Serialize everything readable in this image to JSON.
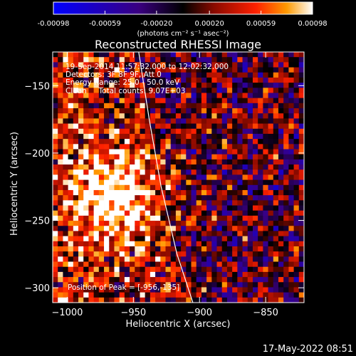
{
  "chart_data": {
    "type": "heatmap",
    "title": "Reconstructed RHESSI Image",
    "xlabel": "Heliocentric X (arcsec)",
    "ylabel": "Heliocentric Y (arcsec)",
    "xlim": [
      -1011,
      -821
    ],
    "ylim": [
      -311,
      -125
    ],
    "x_ticks": [
      -1000,
      -950,
      -900,
      -850
    ],
    "x_tick_labels": [
      "−1000",
      "−950",
      "−900",
      "−850"
    ],
    "y_ticks": [
      -300,
      -250,
      -200,
      -150
    ],
    "y_tick_labels": [
      "−300",
      "−250",
      "−200",
      "−150"
    ],
    "colorbar": {
      "range": [
        -0.00098,
        0.00098
      ],
      "ticks": [
        -0.00098,
        -0.00059,
        -0.0002,
        0.0002,
        0.00059,
        0.00098
      ],
      "tick_labels": [
        "-0.00098",
        "-0.00059",
        "-0.00020",
        "0.00020",
        "0.00059",
        "0.00098"
      ],
      "unit_label": "(photons cm⁻² s⁻¹ asec⁻²)"
    },
    "grid": false,
    "bright_source_center": [
      -963,
      -233
    ],
    "peak_position": [
      -956,
      -135
    ],
    "limb_curve": [
      [
        -946,
        -125
      ],
      [
        -938,
        -175
      ],
      [
        -929,
        -225
      ],
      [
        -917,
        -275
      ],
      [
        -905,
        -311
      ]
    ]
  },
  "annotations": [
    "19-Sep-2014 11:57:32.000 to 12:02:32.000",
    "Detectors: 3F 8F 9F, Att 0",
    "Energy Range: 25.0 - 50.0 keV",
    "Clean     Total counts: 9.07E+03"
  ],
  "peak_text": "Position of Peak = [-956,-135]",
  "timestamp": "17-May-2022 08:51"
}
